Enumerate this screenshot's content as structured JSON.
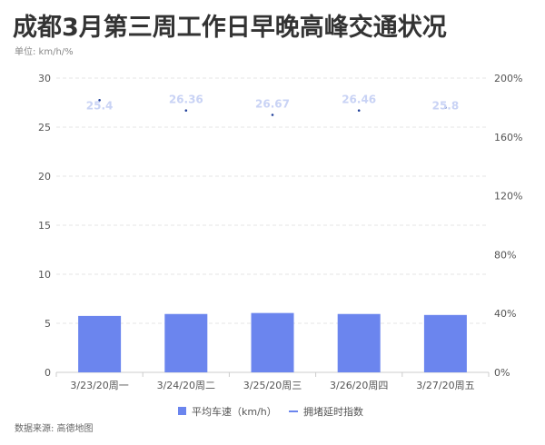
{
  "title": "成都3月第三周工作日早晚高峰交通状况",
  "unit_label": "单位: km/h/%",
  "source": "数据来源: 高德地图",
  "colors": {
    "bar": "#6b85ee",
    "line_point": "#1f3f9a",
    "data_label": "#c9d3f5",
    "grid": "#e6e6e6",
    "axis": "#cccccc",
    "legend_line": "#6b85ee"
  },
  "chart_data": {
    "type": "bar",
    "categories": [
      "3/23/20周一",
      "3/24/20周二",
      "3/25/20周三",
      "3/26/20周四",
      "3/27/20周五"
    ],
    "y_left": {
      "range": [
        0,
        30
      ],
      "ticks": [
        "0",
        "5",
        "10",
        "15",
        "20",
        "25",
        "30"
      ]
    },
    "y_right": {
      "range": [
        0,
        200
      ],
      "ticks": [
        "0%",
        "40%",
        "80%",
        "120%",
        "160%",
        "200%"
      ]
    },
    "series": [
      {
        "name": "平均车速（km/h）",
        "type": "bar",
        "axis": "left",
        "values": [
          5.75,
          5.95,
          6.05,
          5.95,
          5.85
        ]
      },
      {
        "name": "拥堵延时指数",
        "type": "line",
        "axis": "right",
        "values": [
          185,
          178,
          175,
          178,
          180
        ],
        "labels": [
          "25.4",
          "26.36",
          "26.67",
          "26.46",
          "25.8"
        ]
      }
    ],
    "grid": true,
    "legend_position": "bottom"
  }
}
